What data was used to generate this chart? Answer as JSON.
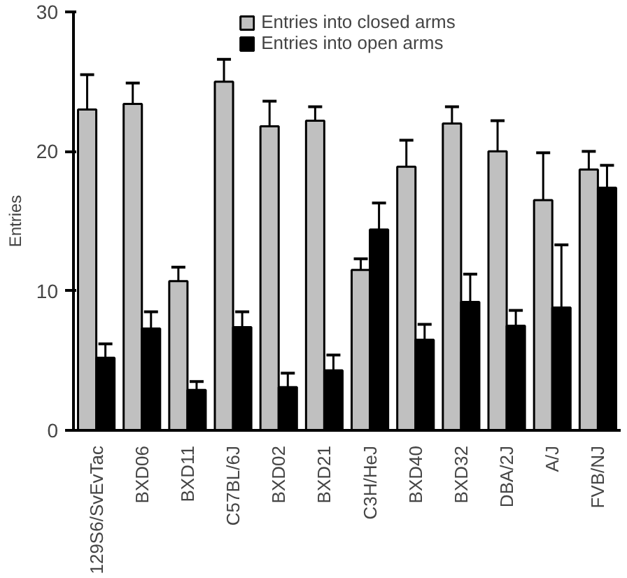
{
  "chart_data": {
    "type": "bar",
    "ylabel": "Entries",
    "categories": [
      "129S6/SvEvTac",
      "BXD06",
      "BXD11",
      "C57BL/6J",
      "BXD02",
      "BXD21",
      "C3H/HeJ",
      "BXD40",
      "BXD32",
      "DBA/2J",
      "A/J",
      "FVB/NJ"
    ],
    "series": [
      {
        "name": "Entries into closed arms",
        "color": "#c0c0c0",
        "values": [
          23.0,
          23.4,
          10.7,
          25.0,
          21.8,
          22.2,
          11.5,
          18.9,
          22.0,
          20.0,
          16.5,
          18.7
        ],
        "errors": [
          [
            23.0,
            25.5
          ],
          [
            23.4,
            24.9
          ],
          [
            10.7,
            11.7
          ],
          [
            25.0,
            26.6
          ],
          [
            21.8,
            23.6
          ],
          [
            22.2,
            23.2
          ],
          [
            11.5,
            12.3
          ],
          [
            18.9,
            20.8
          ],
          [
            22.0,
            23.2
          ],
          [
            20.0,
            22.2
          ],
          [
            16.5,
            19.9
          ],
          [
            18.7,
            20.0
          ]
        ]
      },
      {
        "name": "Entries into open arms",
        "color": "#000000",
        "values": [
          5.2,
          7.3,
          2.9,
          7.4,
          3.1,
          4.3,
          14.4,
          6.5,
          9.2,
          7.5,
          8.8,
          17.4
        ],
        "errors": [
          [
            5.2,
            6.2
          ],
          [
            7.3,
            8.5
          ],
          [
            2.9,
            3.5
          ],
          [
            7.4,
            8.5
          ],
          [
            3.1,
            4.1
          ],
          [
            4.3,
            5.4
          ],
          [
            14.4,
            16.3
          ],
          [
            6.5,
            7.6
          ],
          [
            9.2,
            11.2
          ],
          [
            7.5,
            8.6
          ],
          [
            8.8,
            13.3
          ],
          [
            17.4,
            19.0
          ]
        ]
      }
    ],
    "ylim": [
      0,
      30
    ],
    "yticks": [
      0,
      10,
      20,
      30
    ],
    "grid": false,
    "legend": "top"
  }
}
